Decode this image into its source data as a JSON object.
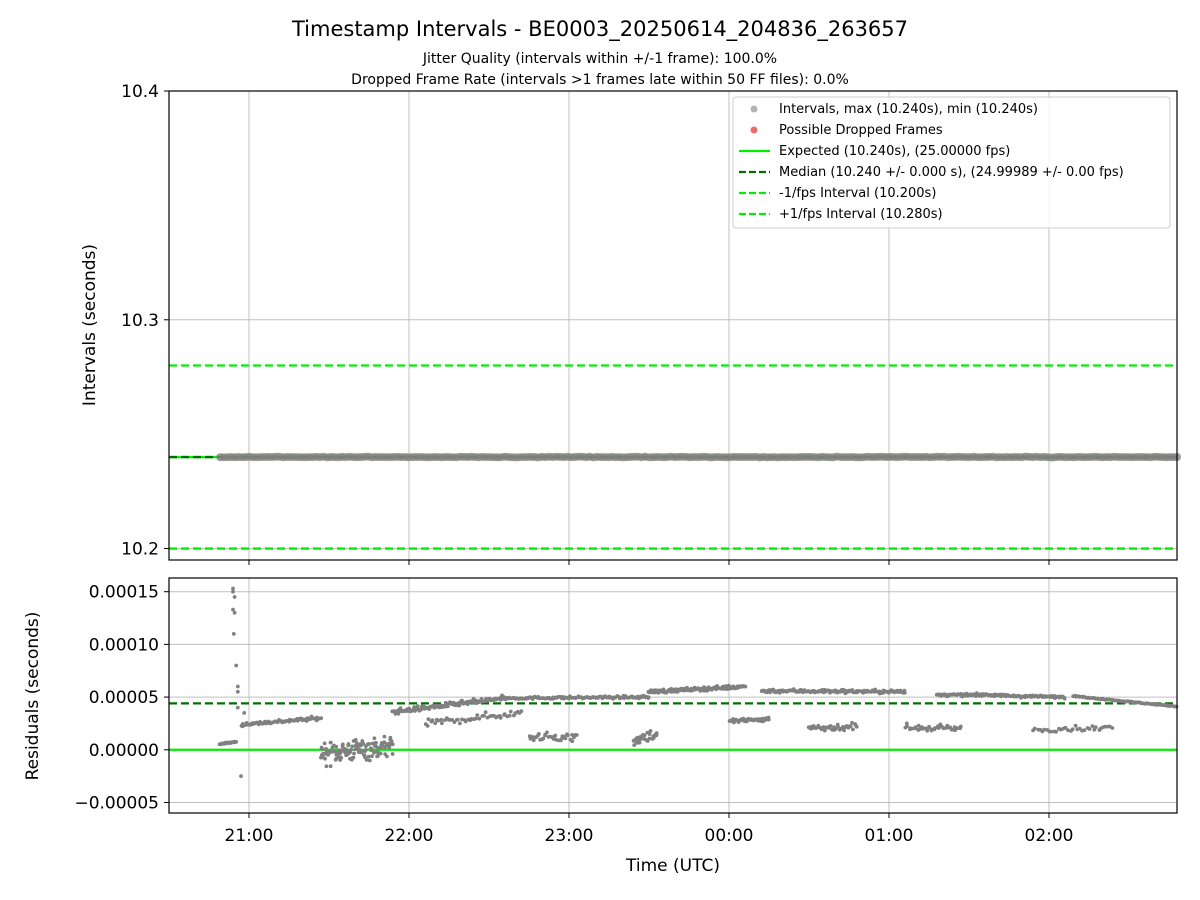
{
  "figure": {
    "title": "Timestamp Intervals - BE0003_20250614_204836_263657",
    "subtitle_1": "Jitter Quality (intervals within +/-1 frame): 100.0%",
    "subtitle_2": "Dropped Frame Rate (intervals >1 frames late within 50 FF files): 0.0%"
  },
  "colors": {
    "intervals": "#808080",
    "dropped": "#ee4444",
    "expected": "#00ee00",
    "median": "#007000",
    "fps_interval": "#00ee00",
    "grid": "#b0b0b0"
  },
  "chart_data": [
    {
      "type": "scatter",
      "xlabel": "",
      "ylabel": "Intervals (seconds)",
      "xlim_hours": [
        20.5,
        26.8
      ],
      "ylim": [
        10.195,
        10.4
      ],
      "y_ticks": [
        "10.2",
        "10.3",
        "10.4"
      ],
      "y_tick_values": [
        10.2,
        10.3,
        10.4
      ],
      "grid": true,
      "legend_position": "top-right",
      "legend": [
        {
          "label": "Intervals, max (10.240s), min (10.240s)",
          "kind": "dot-gray"
        },
        {
          "label": "Possible Dropped Frames",
          "kind": "dot-red"
        },
        {
          "label": "Expected (10.240s), (25.00000 fps)",
          "kind": "line-green"
        },
        {
          "label": "Median (10.240 +/- 0.000 s), (24.99989 +/- 0.00 fps)",
          "kind": "dash-darkgreen"
        },
        {
          "label": "-1/fps Interval (10.200s)",
          "kind": "dash-green"
        },
        {
          "label": "+1/fps Interval (10.280s)",
          "kind": "dash-green"
        }
      ],
      "intervals": {
        "value": 10.24,
        "x_start": 20.82,
        "x_end": 26.8
      },
      "dropped_frames": [],
      "expected": 10.24,
      "median": 10.24,
      "minus_fps": 10.2,
      "plus_fps": 10.28
    },
    {
      "type": "scatter",
      "xlabel": "Time (UTC)",
      "ylabel": "Residuals (seconds)",
      "xlim_hours": [
        20.5,
        26.8
      ],
      "ylim": [
        -6e-05,
        0.000163
      ],
      "x_ticks": [
        "21:00",
        "22:00",
        "23:00",
        "00:00",
        "01:00",
        "02:00"
      ],
      "x_tick_values": [
        21,
        22,
        23,
        24,
        25,
        26
      ],
      "y_ticks": [
        "0.00015",
        "0.00010",
        "0.00005",
        "0.00000",
        "−0.00005"
      ],
      "y_tick_values": [
        0.00015,
        0.0001,
        5e-05,
        0,
        -5e-05
      ],
      "grid": true,
      "expected": 0,
      "median": 4.4e-05,
      "segments": [
        {
          "x": [
            20.82,
            20.92
          ],
          "y": [
            5.5e-06,
            7.5e-06
          ],
          "spread": 1e-06,
          "n": 20
        },
        {
          "x": [
            20.95,
            21.45
          ],
          "y": [
            2.4e-05,
            3e-05
          ],
          "spread": 3e-06,
          "n": 70
        },
        {
          "x": [
            21.45,
            21.9
          ],
          "y": [
            -3e-06,
            3e-06
          ],
          "spread": 1.8e-05,
          "n": 130
        },
        {
          "x": [
            21.9,
            22.6
          ],
          "y": [
            3.6e-05,
            4.9e-05
          ],
          "spread": 4e-06,
          "n": 120
        },
        {
          "x": [
            22.1,
            22.7
          ],
          "y": [
            2.5e-05,
            3.5e-05
          ],
          "spread": 6e-06,
          "n": 50
        },
        {
          "x": [
            22.6,
            23.5
          ],
          "y": [
            4.9e-05,
            5e-05
          ],
          "spread": 2e-06,
          "n": 120
        },
        {
          "x": [
            22.75,
            23.05
          ],
          "y": [
            1.2e-05,
            1.2e-05
          ],
          "spread": 7e-06,
          "n": 35
        },
        {
          "x": [
            23.5,
            24.1
          ],
          "y": [
            5.5e-05,
            6e-05
          ],
          "spread": 3e-06,
          "n": 120
        },
        {
          "x": [
            23.4,
            23.55
          ],
          "y": [
            1e-05,
            1.5e-05
          ],
          "spread": 1e-05,
          "n": 25
        },
        {
          "x": [
            24.0,
            24.25
          ],
          "y": [
            2.7e-05,
            2.9e-05
          ],
          "spread": 4e-06,
          "n": 45
        },
        {
          "x": [
            24.2,
            25.1
          ],
          "y": [
            5.6e-05,
            5.5e-05
          ],
          "spread": 3e-06,
          "n": 140
        },
        {
          "x": [
            24.5,
            24.8
          ],
          "y": [
            2.1e-05,
            2.2e-05
          ],
          "spread": 6e-06,
          "n": 40
        },
        {
          "x": [
            25.3,
            25.75
          ],
          "y": [
            5.2e-05,
            5.2e-05
          ],
          "spread": 2e-06,
          "n": 80
        },
        {
          "x": [
            25.1,
            25.45
          ],
          "y": [
            2.1e-05,
            2e-05
          ],
          "spread": 5e-06,
          "n": 40
        },
        {
          "x": [
            25.75,
            26.1
          ],
          "y": [
            5.1e-05,
            5e-05
          ],
          "spread": 2e-06,
          "n": 60
        },
        {
          "x": [
            25.9,
            26.4
          ],
          "y": [
            1.9e-05,
            2.1e-05
          ],
          "spread": 4e-06,
          "n": 35
        },
        {
          "x": [
            26.15,
            26.8
          ],
          "y": [
            5.1e-05,
            4.1e-05
          ],
          "spread": 8e-07,
          "n": 90
        }
      ],
      "outliers": [
        {
          "x": 20.9,
          "y": 0.000153
        },
        {
          "x": 20.9,
          "y": 0.00015
        },
        {
          "x": 20.91,
          "y": 0.000145
        },
        {
          "x": 20.9,
          "y": 0.000133
        },
        {
          "x": 20.91,
          "y": 0.00013
        },
        {
          "x": 20.905,
          "y": 0.00011
        },
        {
          "x": 20.92,
          "y": 8e-05
        },
        {
          "x": 20.93,
          "y": 6e-05
        },
        {
          "x": 20.93,
          "y": 5.5e-05
        },
        {
          "x": 20.93,
          "y": 4e-05
        },
        {
          "x": 20.95,
          "y": -2.5e-05
        },
        {
          "x": 20.97,
          "y": 3.5e-05
        }
      ]
    }
  ]
}
